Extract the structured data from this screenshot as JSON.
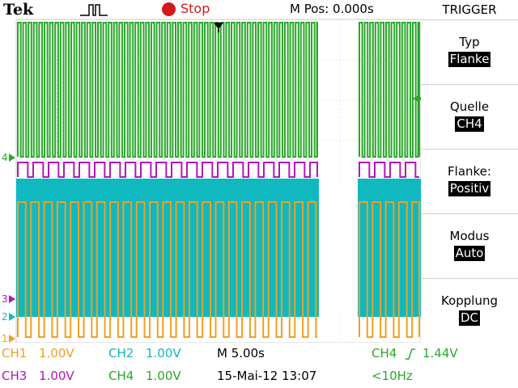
{
  "header": {
    "brand": "Tek",
    "acquisition_state": "Stop",
    "main_position": "M Pos: 0.000s",
    "menu_title": "TRIGGER"
  },
  "channel_markers": {
    "ch4": "4",
    "ch3": "3",
    "ch2": "2",
    "ch1": "1"
  },
  "trigger_menu": {
    "items": [
      {
        "label": "Typ",
        "value": "Flanke"
      },
      {
        "label": "Quelle",
        "value": "CH4"
      },
      {
        "label": "Flanke:",
        "value": "Positiv"
      },
      {
        "label": "Modus",
        "value": "Auto"
      },
      {
        "label": "Kopplung",
        "value": "DC"
      }
    ]
  },
  "status": {
    "ch1": "CH1",
    "ch1_scale": "1.00V",
    "ch2": "CH2",
    "ch2_scale": "1.00V",
    "ch3": "CH3",
    "ch3_scale": "1.00V",
    "ch4": "CH4",
    "ch4_scale": "1.00V",
    "timebase": "M 5.00s",
    "date": "15-Mai-12 13:07",
    "trigger_source": "CH4",
    "trigger_level": "1.44V",
    "trigger_freq": "<10Hz"
  },
  "colors": {
    "ch1": "#f0a020",
    "ch2": "#10b8c0",
    "ch3": "#b018b8",
    "ch4": "#2aa82a",
    "stop": "#d21a1a"
  },
  "icons": {
    "acquisition": "pulse-icon",
    "trigger_position": "trigger-position-arrow-icon",
    "trigger_level": "trigger-level-arrow-icon"
  }
}
